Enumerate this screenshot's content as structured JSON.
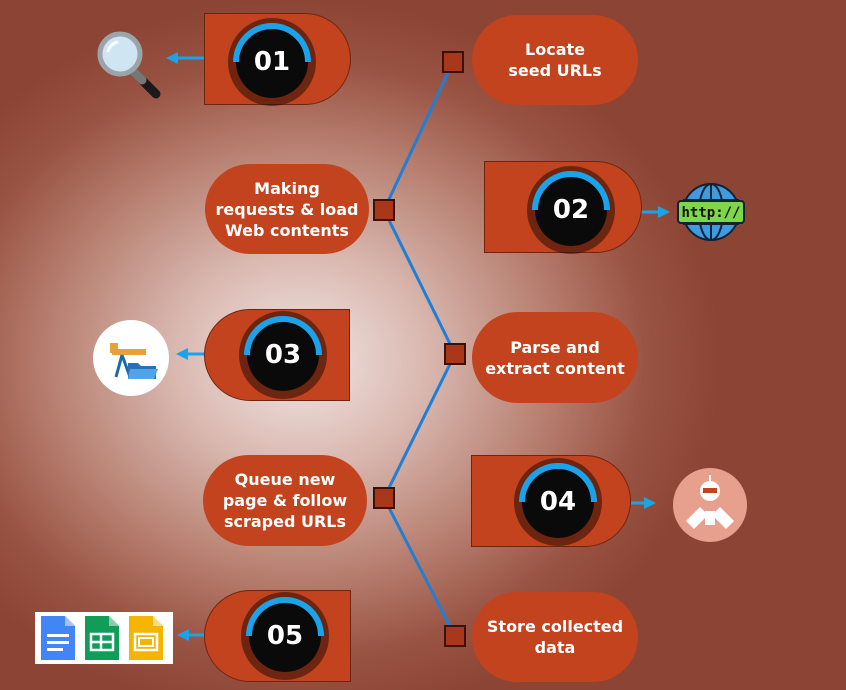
{
  "steps": [
    {
      "number": "01"
    },
    {
      "number": "02"
    },
    {
      "number": "03"
    },
    {
      "number": "04"
    },
    {
      "number": "05"
    }
  ],
  "labels": {
    "locate": [
      "Locate",
      "seed URLs"
    ],
    "making": [
      "Making",
      "requests & load",
      "Web contents"
    ],
    "parse": [
      "Parse and",
      "extract content"
    ],
    "queue": [
      "Queue new",
      "page & follow",
      "scraped URLs"
    ],
    "store": [
      "Store collected",
      "data"
    ]
  },
  "icons": {
    "step01": "magnifier-icon",
    "step02": "http-globe-icon",
    "step03": "oil-pump-folder-icon",
    "step04": "robot-scraper-icon",
    "step05": "docs-sheets-slides-icon",
    "http_text": "http://"
  },
  "colors": {
    "pill": "#c2431e",
    "line": "#1f7fd6",
    "arc": "#1aa3e8",
    "disc": "#0a0a0a"
  }
}
